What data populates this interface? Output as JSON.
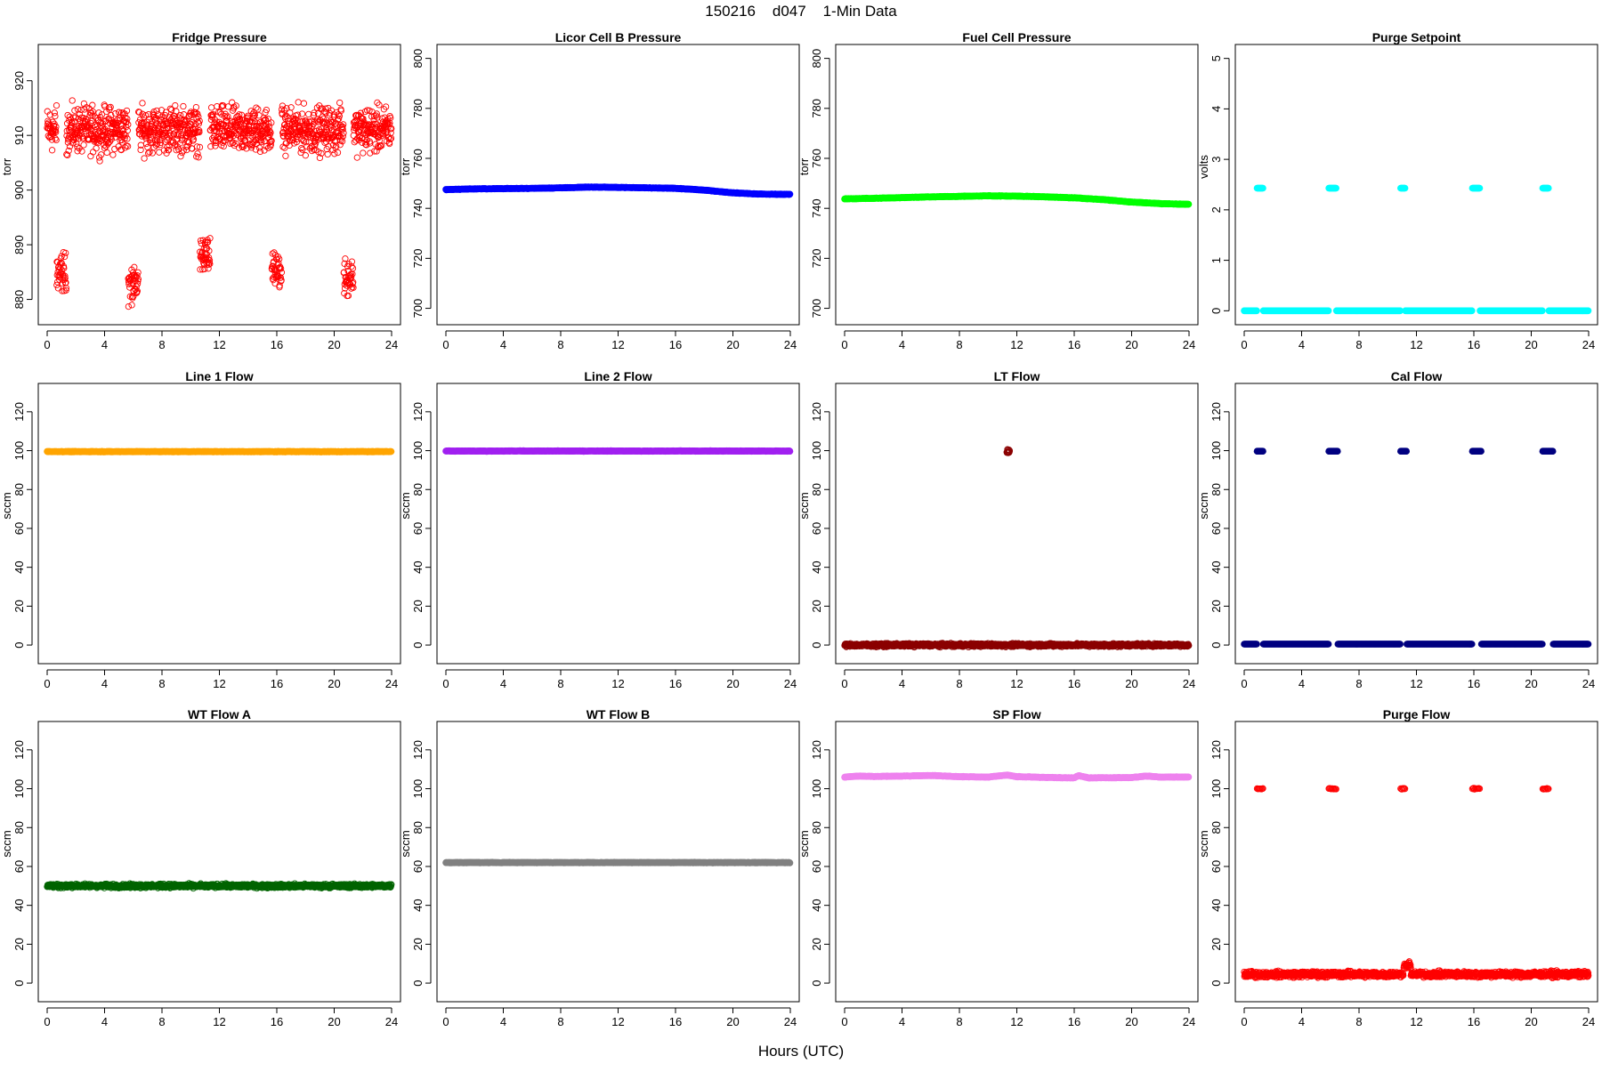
{
  "figure": {
    "title": "150216    d047    1-Min Data",
    "xlabel": "Hours (UTC)"
  },
  "chart_data": [
    {
      "type": "scatter",
      "title": "Fridge Pressure",
      "ylabel": "torr",
      "xlim": [
        0,
        24
      ],
      "ylim": [
        877,
        925
      ],
      "yticks": [
        880,
        890,
        900,
        910,
        920
      ],
      "xticks": [
        0,
        4,
        8,
        12,
        16,
        20,
        24
      ],
      "series": [
        {
          "color": "#ff0000",
          "marker": "open-circle",
          "pattern": "noisy",
          "base": 911,
          "spread": 6,
          "dips": [
            [
              1,
              885
            ],
            [
              6,
              883
            ],
            [
              11,
              888
            ],
            [
              16,
              885
            ],
            [
              21,
              884
            ]
          ]
        }
      ]
    },
    {
      "type": "scatter",
      "title": "Licor Cell B Pressure",
      "ylabel": "torr",
      "xlim": [
        0,
        24
      ],
      "ylim": [
        697,
        802
      ],
      "yticks": [
        700,
        720,
        740,
        760,
        780,
        800
      ],
      "xticks": [
        0,
        4,
        8,
        12,
        16,
        20,
        24
      ],
      "series": [
        {
          "color": "#0000ff",
          "marker": "filled",
          "pattern": "line",
          "points": [
            [
              0,
              747.5
            ],
            [
              2,
              747.8
            ],
            [
              4,
              747.9
            ],
            [
              6,
              748
            ],
            [
              8,
              748.2
            ],
            [
              10,
              748.5
            ],
            [
              12,
              748.4
            ],
            [
              14,
              748.2
            ],
            [
              16,
              748
            ],
            [
              18,
              747.3
            ],
            [
              20,
              746.2
            ],
            [
              22,
              745.7
            ],
            [
              24,
              745.6
            ]
          ]
        }
      ]
    },
    {
      "type": "scatter",
      "title": "Fuel Cell Pressure",
      "ylabel": "torr",
      "xlim": [
        0,
        24
      ],
      "ylim": [
        697,
        802
      ],
      "yticks": [
        700,
        720,
        740,
        760,
        780,
        800
      ],
      "xticks": [
        0,
        4,
        8,
        12,
        16,
        20,
        24
      ],
      "series": [
        {
          "color": "#00ff00",
          "marker": "filled",
          "pattern": "line",
          "points": [
            [
              0,
              743.8
            ],
            [
              2,
              744
            ],
            [
              4,
              744.3
            ],
            [
              6,
              744.6
            ],
            [
              8,
              744.8
            ],
            [
              10,
              745
            ],
            [
              12,
              744.9
            ],
            [
              14,
              744.6
            ],
            [
              16,
              744.2
            ],
            [
              18,
              743.5
            ],
            [
              20,
              742.5
            ],
            [
              22,
              741.9
            ],
            [
              24,
              741.6
            ]
          ]
        }
      ]
    },
    {
      "type": "scatter",
      "title": "Purge Setpoint",
      "ylabel": "volts",
      "xlim": [
        0,
        24
      ],
      "ylim": [
        -0.1,
        5.1
      ],
      "yticks": [
        0,
        1,
        2,
        3,
        4,
        5
      ],
      "xticks": [
        0,
        4,
        8,
        12,
        16,
        20,
        24
      ],
      "series": [
        {
          "color": "#00ffff",
          "marker": "filled",
          "pattern": "baseline-events",
          "base": 0,
          "event_value": 2.43,
          "events": [
            [
              0.9,
              1.3
            ],
            [
              5.9,
              6.4
            ],
            [
              10.9,
              11.2
            ],
            [
              15.9,
              16.4
            ],
            [
              20.8,
              21.2
            ]
          ]
        }
      ]
    },
    {
      "type": "scatter",
      "title": "Line 1 Flow",
      "ylabel": "sccm",
      "xlim": [
        0,
        24
      ],
      "ylim": [
        -5,
        130
      ],
      "yticks": [
        0,
        20,
        40,
        60,
        80,
        100,
        120
      ],
      "xticks": [
        0,
        4,
        8,
        12,
        16,
        20,
        24
      ],
      "series": [
        {
          "color": "#ffa500",
          "marker": "filled",
          "pattern": "line",
          "points": [
            [
              0,
              99.5
            ],
            [
              24,
              99.5
            ]
          ]
        }
      ]
    },
    {
      "type": "scatter",
      "title": "Line 2 Flow",
      "ylabel": "sccm",
      "xlim": [
        0,
        24
      ],
      "ylim": [
        -5,
        130
      ],
      "yticks": [
        0,
        20,
        40,
        60,
        80,
        100,
        120
      ],
      "xticks": [
        0,
        4,
        8,
        12,
        16,
        20,
        24
      ],
      "series": [
        {
          "color": "#a020f0",
          "marker": "filled",
          "pattern": "line",
          "points": [
            [
              0,
              99.8
            ],
            [
              24,
              99.8
            ]
          ]
        }
      ]
    },
    {
      "type": "scatter",
      "title": "LT Flow",
      "ylabel": "sccm",
      "xlim": [
        0,
        24
      ],
      "ylim": [
        -5,
        130
      ],
      "yticks": [
        0,
        20,
        40,
        60,
        80,
        100,
        120
      ],
      "xticks": [
        0,
        4,
        8,
        12,
        16,
        20,
        24
      ],
      "series": [
        {
          "color": "#8b0000",
          "marker": "open-circle",
          "pattern": "noisy",
          "base": 0,
          "spread": 1.2,
          "spikes": [
            [
              11.3,
              11.5,
              99.5,
              1.6
            ]
          ]
        }
      ]
    },
    {
      "type": "scatter",
      "title": "Cal Flow",
      "ylabel": "sccm",
      "xlim": [
        0,
        24
      ],
      "ylim": [
        -5,
        130
      ],
      "yticks": [
        0,
        20,
        40,
        60,
        80,
        100,
        120
      ],
      "xticks": [
        0,
        4,
        8,
        12,
        16,
        20,
        24
      ],
      "series": [
        {
          "color": "#000080",
          "marker": "filled",
          "pattern": "baseline-events",
          "base": 0.5,
          "event_value": 99.7,
          "events": [
            [
              0.9,
              1.3
            ],
            [
              5.9,
              6.5
            ],
            [
              10.9,
              11.3
            ],
            [
              15.9,
              16.5
            ],
            [
              20.8,
              21.5
            ]
          ]
        }
      ]
    },
    {
      "type": "scatter",
      "title": "WT Flow A",
      "ylabel": "sccm",
      "xlim": [
        0,
        24
      ],
      "ylim": [
        -5,
        130
      ],
      "yticks": [
        0,
        20,
        40,
        60,
        80,
        100,
        120
      ],
      "xticks": [
        0,
        4,
        8,
        12,
        16,
        20,
        24
      ],
      "series": [
        {
          "color": "#006400",
          "marker": "open-circle",
          "pattern": "noisy",
          "base": 50,
          "spread": 1.4
        }
      ]
    },
    {
      "type": "scatter",
      "title": "WT Flow B",
      "ylabel": "sccm",
      "xlim": [
        0,
        24
      ],
      "ylim": [
        -5,
        130
      ],
      "yticks": [
        0,
        20,
        40,
        60,
        80,
        100,
        120
      ],
      "xticks": [
        0,
        4,
        8,
        12,
        16,
        20,
        24
      ],
      "series": [
        {
          "color": "#808080",
          "marker": "filled",
          "pattern": "line",
          "points": [
            [
              0,
              62
            ],
            [
              24,
              62
            ]
          ]
        }
      ]
    },
    {
      "type": "scatter",
      "title": "SP Flow",
      "ylabel": "sccm",
      "xlim": [
        0,
        24
      ],
      "ylim": [
        -5,
        130
      ],
      "yticks": [
        0,
        20,
        40,
        60,
        80,
        100,
        120
      ],
      "xticks": [
        0,
        4,
        8,
        12,
        16,
        20,
        24
      ],
      "series": [
        {
          "color": "#ee82ee",
          "marker": "filled",
          "pattern": "line",
          "points": [
            [
              0,
              106
            ],
            [
              1,
              106.5
            ],
            [
              2,
              106.3
            ],
            [
              4,
              106.5
            ],
            [
              6,
              106.8
            ],
            [
              8,
              106.2
            ],
            [
              10,
              106
            ],
            [
              11.3,
              107
            ],
            [
              12,
              106.2
            ],
            [
              14,
              105.8
            ],
            [
              16,
              105.6
            ],
            [
              16.3,
              106.8
            ],
            [
              17,
              105.6
            ],
            [
              20,
              105.7
            ],
            [
              21,
              106.5
            ],
            [
              22,
              106
            ],
            [
              24,
              106
            ]
          ]
        }
      ]
    },
    {
      "type": "scatter",
      "title": "Purge Flow",
      "ylabel": "sccm",
      "xlim": [
        0,
        24
      ],
      "ylim": [
        -5,
        130
      ],
      "yticks": [
        0,
        20,
        40,
        60,
        80,
        100,
        120
      ],
      "xticks": [
        0,
        4,
        8,
        12,
        16,
        20,
        24
      ],
      "series": [
        {
          "color": "#ff0000",
          "marker": "open-circle",
          "pattern": "noisy",
          "base": 4.5,
          "spread": 2.2,
          "events_value": 100,
          "events": [
            [
              0.9,
              1.3
            ],
            [
              5.9,
              6.4
            ],
            [
              10.9,
              11.2
            ],
            [
              15.9,
              16.4
            ],
            [
              20.8,
              21.2
            ]
          ],
          "spikes": [
            [
              11.1,
              11.6,
              9,
              2.5
            ]
          ]
        }
      ]
    }
  ]
}
